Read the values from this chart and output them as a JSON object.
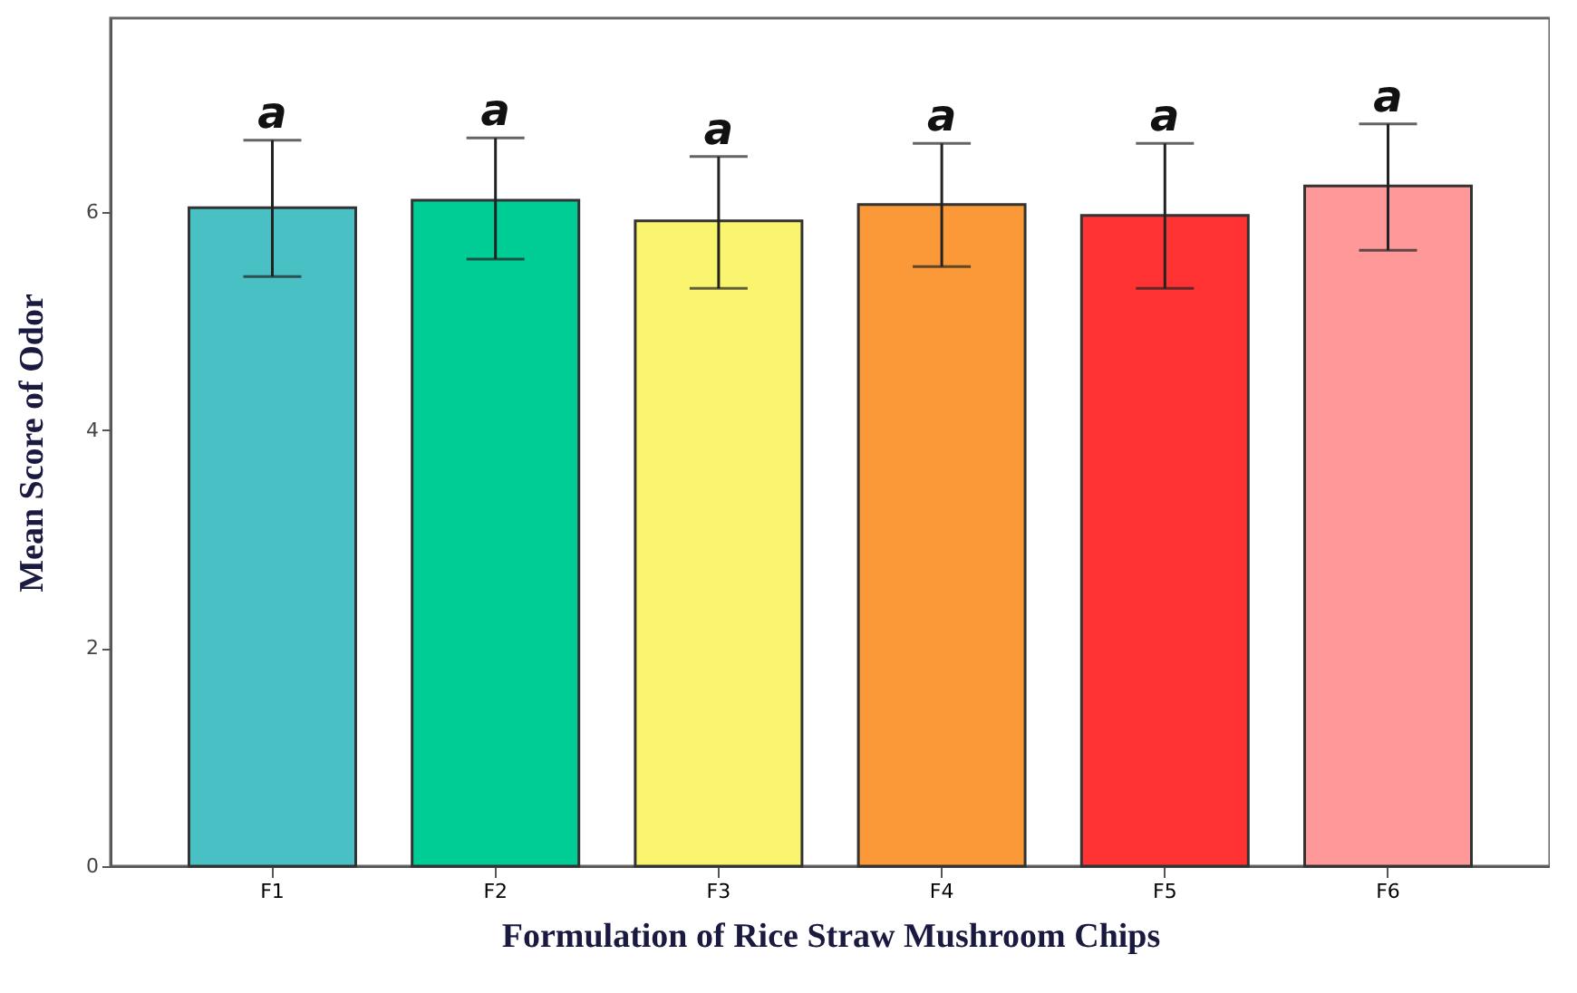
{
  "chart_data": {
    "type": "bar",
    "xlabel": "Formulation of Rice Straw Mushroom Chips",
    "ylabel": "Mean Score of Odor",
    "categories": [
      "F1",
      "F2",
      "F3",
      "F4",
      "F5",
      "F6"
    ],
    "values": [
      6.04,
      6.11,
      5.92,
      6.07,
      5.97,
      6.24
    ],
    "colors": [
      "#48c0c4",
      "#00cc96",
      "#f9f56e",
      "#fb9837",
      "#ff3333",
      "#ff9898"
    ],
    "errors": [
      [
        5.41,
        6.66
      ],
      [
        5.57,
        6.68
      ],
      [
        5.3,
        6.51
      ],
      [
        5.5,
        6.63
      ],
      [
        5.3,
        6.63
      ],
      [
        5.65,
        6.81
      ]
    ],
    "annotations": [
      {
        "text": "a",
        "x": "F1",
        "y": 6.66
      },
      {
        "text": "a",
        "x": "F2",
        "y": 6.68
      },
      {
        "text": "a",
        "x": "F3",
        "y": 6.51
      },
      {
        "text": "a",
        "x": "F4",
        "y": 6.63
      },
      {
        "text": "a",
        "x": "F5",
        "y": 6.63
      },
      {
        "text": "a",
        "x": "F6",
        "y": 6.81
      }
    ],
    "ylim": [
      0,
      7.78
    ],
    "yticks": [
      0,
      2,
      4,
      6
    ],
    "grid": false
  }
}
